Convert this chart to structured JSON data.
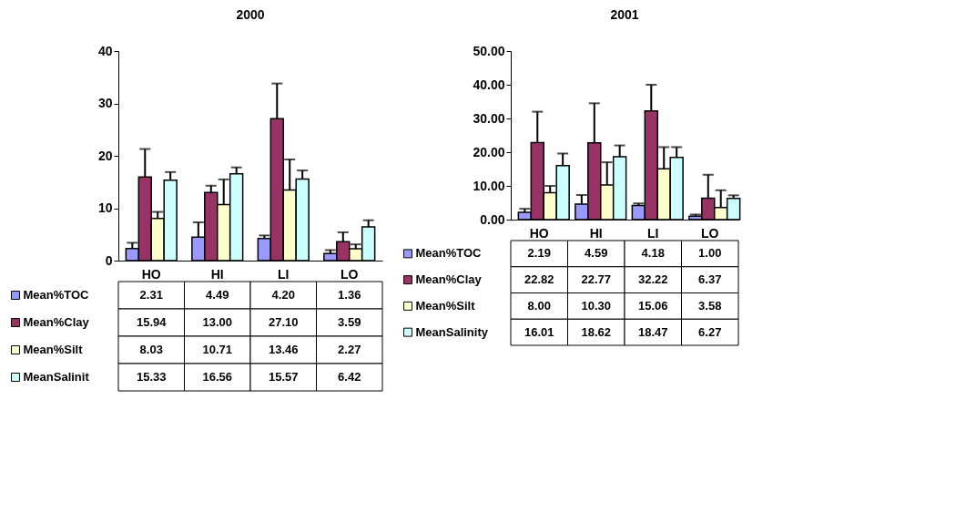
{
  "chart_data": [
    {
      "type": "bar",
      "title": "2000",
      "legend": "bottom",
      "categories": [
        "HO",
        "HI",
        "LI",
        "LO"
      ],
      "ylim": [
        0,
        40
      ],
      "yticks": [
        0,
        10,
        20,
        30,
        40
      ],
      "series": [
        {
          "name": "Mean%TOC",
          "color": "#9999ff",
          "values": [
            2.31,
            4.49,
            4.2,
            1.36
          ],
          "value_labels": [
            "2.31",
            "4.49",
            "4.20",
            "1.36"
          ],
          "errors": [
            [
              2.31,
              3.4
            ],
            [
              4.49,
              7.3
            ],
            [
              4.2,
              4.8
            ],
            [
              1.36,
              2.0
            ]
          ]
        },
        {
          "name": "Mean%Clay",
          "color": "#993366",
          "values": [
            15.94,
            13.0,
            27.1,
            3.59
          ],
          "value_labels": [
            "15.94",
            "13.00",
            "27.10",
            "3.59"
          ],
          "errors": [
            [
              15.94,
              21.3
            ],
            [
              13.0,
              14.3
            ],
            [
              27.1,
              33.8
            ],
            [
              3.59,
              5.4
            ]
          ]
        },
        {
          "name": "Mean%Silt",
          "color": "#ffffcc",
          "values": [
            8.03,
            10.71,
            13.46,
            2.27
          ],
          "value_labels": [
            "8.03",
            "10.71",
            "13.46",
            "2.27"
          ],
          "errors": [
            [
              8.03,
              9.3
            ],
            [
              10.71,
              15.5
            ],
            [
              13.46,
              19.3
            ],
            [
              2.27,
              3.1
            ]
          ]
        },
        {
          "name": "MeanSalinit",
          "color": "#ccffff",
          "values": [
            15.33,
            16.56,
            15.57,
            6.42
          ],
          "value_labels": [
            "15.33",
            "16.56",
            "15.57",
            "6.42"
          ],
          "errors": [
            [
              15.33,
              16.9
            ],
            [
              16.56,
              17.8
            ],
            [
              15.57,
              17.2
            ],
            [
              6.42,
              7.7
            ]
          ]
        }
      ]
    },
    {
      "type": "bar",
      "title": "2001",
      "legend": "bottom",
      "categories": [
        "HO",
        "HI",
        "LI",
        "LO"
      ],
      "ylim": [
        0,
        50
      ],
      "yticks": [
        {
          "value": 0,
          "label": "0.00"
        },
        {
          "value": 10,
          "label": "10.00"
        },
        {
          "value": 20,
          "label": "20.00"
        },
        {
          "value": 30,
          "label": "30.00"
        },
        {
          "value": 40,
          "label": "40.00"
        },
        {
          "value": 50,
          "label": "50.00"
        }
      ],
      "series": [
        {
          "name": "Mean%TOC",
          "color": "#9999ff",
          "values": [
            2.19,
            4.59,
            4.18,
            1.0
          ],
          "value_labels": [
            "2.19",
            "4.59",
            "4.18",
            "1.00"
          ],
          "errors": [
            [
              2.19,
              3.2
            ],
            [
              4.59,
              7.3
            ],
            [
              4.18,
              4.8
            ],
            [
              1.0,
              1.5
            ]
          ]
        },
        {
          "name": "Mean%Clay",
          "color": "#993366",
          "values": [
            22.82,
            22.77,
            32.22,
            6.37
          ],
          "value_labels": [
            "22.82",
            "22.77",
            "32.22",
            "6.37"
          ],
          "errors": [
            [
              22.82,
              32.0
            ],
            [
              22.77,
              34.5
            ],
            [
              32.22,
              40.0
            ],
            [
              6.37,
              13.3
            ]
          ]
        },
        {
          "name": "Mean%Silt",
          "color": "#ffffcc",
          "values": [
            8.0,
            10.3,
            15.06,
            3.58
          ],
          "value_labels": [
            "8.00",
            "10.30",
            "15.06",
            "3.58"
          ],
          "errors": [
            [
              8.0,
              10.0
            ],
            [
              10.3,
              17.0
            ],
            [
              15.06,
              21.5
            ],
            [
              3.58,
              8.7
            ]
          ]
        },
        {
          "name": "MeanSalinity",
          "color": "#ccffff",
          "values": [
            16.01,
            18.62,
            18.47,
            6.27
          ],
          "value_labels": [
            "16.01",
            "18.62",
            "18.47",
            "6.27"
          ],
          "errors": [
            [
              16.01,
              19.6
            ],
            [
              18.62,
              22.0
            ],
            [
              18.47,
              21.5
            ],
            [
              6.27,
              7.2
            ]
          ]
        }
      ]
    }
  ]
}
